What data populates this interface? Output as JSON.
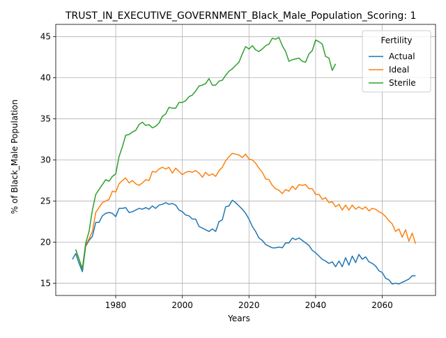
{
  "chart_data": {
    "type": "line",
    "title": "TRUST_IN_EXECUTIVE_GOVERNMENT_Black_Male_Population_Scoring: 1",
    "xlabel": "Years",
    "ylabel": "% of Black_Male Population",
    "xlim": [
      1962,
      2076
    ],
    "ylim": [
      13.5,
      46.5
    ],
    "x_ticks": [
      1980,
      2000,
      2020,
      2040,
      2060
    ],
    "y_ticks": [
      15,
      20,
      25,
      30,
      35,
      40,
      45
    ],
    "grid": true,
    "legend": {
      "title": "Fertility",
      "placement": "top-right"
    },
    "series": [
      {
        "name": "Actual",
        "color": "#1f77b4",
        "points": [
          [
            1967,
            17.9
          ],
          [
            1968,
            18.6
          ],
          [
            1969,
            17.4
          ],
          [
            1970,
            16.4
          ],
          [
            1971,
            19.5
          ],
          [
            1972,
            20.2
          ],
          [
            1973,
            20.7
          ],
          [
            1974,
            22.4
          ],
          [
            1975,
            22.4
          ],
          [
            1976,
            23.2
          ],
          [
            1977,
            23.5
          ],
          [
            1978,
            23.6
          ],
          [
            1979,
            23.5
          ],
          [
            1980,
            23.1
          ],
          [
            1981,
            24.1
          ],
          [
            1982,
            24.1
          ],
          [
            1983,
            24.2
          ],
          [
            1984,
            23.6
          ],
          [
            1985,
            23.7
          ],
          [
            1986,
            23.9
          ],
          [
            1987,
            24.1
          ],
          [
            1988,
            24.0
          ],
          [
            1989,
            24.2
          ],
          [
            1990,
            24.0
          ],
          [
            1991,
            24.4
          ],
          [
            1992,
            24.1
          ],
          [
            1993,
            24.5
          ],
          [
            1994,
            24.6
          ],
          [
            1995,
            24.8
          ],
          [
            1996,
            24.6
          ],
          [
            1997,
            24.7
          ],
          [
            1998,
            24.5
          ],
          [
            1999,
            23.9
          ],
          [
            2000,
            23.7
          ],
          [
            2001,
            23.3
          ],
          [
            2002,
            23.2
          ],
          [
            2003,
            22.8
          ],
          [
            2004,
            22.8
          ],
          [
            2005,
            21.9
          ],
          [
            2006,
            21.7
          ],
          [
            2007,
            21.5
          ],
          [
            2008,
            21.3
          ],
          [
            2009,
            21.6
          ],
          [
            2010,
            21.3
          ],
          [
            2011,
            22.5
          ],
          [
            2012,
            22.7
          ],
          [
            2013,
            24.3
          ],
          [
            2014,
            24.4
          ],
          [
            2015,
            25.1
          ],
          [
            2016,
            24.8
          ],
          [
            2017,
            24.4
          ],
          [
            2018,
            24.0
          ],
          [
            2019,
            23.5
          ],
          [
            2020,
            22.8
          ],
          [
            2021,
            21.9
          ],
          [
            2022,
            21.3
          ],
          [
            2023,
            20.5
          ],
          [
            2024,
            20.2
          ],
          [
            2025,
            19.7
          ],
          [
            2026,
            19.5
          ],
          [
            2027,
            19.3
          ],
          [
            2028,
            19.3
          ],
          [
            2029,
            19.4
          ],
          [
            2030,
            19.3
          ],
          [
            2031,
            19.9
          ],
          [
            2032,
            19.9
          ],
          [
            2033,
            20.5
          ],
          [
            2034,
            20.3
          ],
          [
            2035,
            20.5
          ],
          [
            2036,
            20.2
          ],
          [
            2037,
            19.9
          ],
          [
            2038,
            19.6
          ],
          [
            2039,
            19.0
          ],
          [
            2040,
            18.7
          ],
          [
            2041,
            18.3
          ],
          [
            2042,
            17.9
          ],
          [
            2043,
            17.7
          ],
          [
            2044,
            17.4
          ],
          [
            2045,
            17.6
          ],
          [
            2046,
            17.0
          ],
          [
            2047,
            17.7
          ],
          [
            2048,
            17.0
          ],
          [
            2049,
            18.1
          ],
          [
            2050,
            17.2
          ],
          [
            2051,
            18.3
          ],
          [
            2052,
            17.5
          ],
          [
            2053,
            18.5
          ],
          [
            2054,
            17.9
          ],
          [
            2055,
            18.2
          ],
          [
            2056,
            17.6
          ],
          [
            2057,
            17.4
          ],
          [
            2058,
            17.1
          ],
          [
            2059,
            16.5
          ],
          [
            2060,
            16.3
          ],
          [
            2061,
            15.6
          ],
          [
            2062,
            15.4
          ],
          [
            2063,
            14.9
          ],
          [
            2064,
            15.0
          ],
          [
            2065,
            14.9
          ],
          [
            2066,
            15.1
          ],
          [
            2067,
            15.3
          ],
          [
            2068,
            15.5
          ],
          [
            2069,
            15.9
          ],
          [
            2070,
            15.9
          ]
        ]
      },
      {
        "name": "Ideal",
        "color": "#ff7f0e",
        "points": [
          [
            1968,
            19.1
          ],
          [
            1969,
            17.9
          ],
          [
            1970,
            16.8
          ],
          [
            1971,
            19.7
          ],
          [
            1972,
            20.4
          ],
          [
            1973,
            21.3
          ],
          [
            1974,
            23.6
          ],
          [
            1975,
            24.2
          ],
          [
            1976,
            24.8
          ],
          [
            1977,
            25.0
          ],
          [
            1978,
            25.2
          ],
          [
            1979,
            26.2
          ],
          [
            1980,
            26.1
          ],
          [
            1981,
            27.1
          ],
          [
            1982,
            27.5
          ],
          [
            1983,
            27.8
          ],
          [
            1984,
            27.2
          ],
          [
            1985,
            27.5
          ],
          [
            1986,
            27.1
          ],
          [
            1987,
            26.9
          ],
          [
            1988,
            27.2
          ],
          [
            1989,
            27.6
          ],
          [
            1990,
            27.5
          ],
          [
            1991,
            28.6
          ],
          [
            1992,
            28.5
          ],
          [
            1993,
            28.9
          ],
          [
            1994,
            29.1
          ],
          [
            1995,
            28.9
          ],
          [
            1996,
            29.1
          ],
          [
            1997,
            28.4
          ],
          [
            1998,
            29.0
          ],
          [
            1999,
            28.6
          ],
          [
            2000,
            28.2
          ],
          [
            2001,
            28.5
          ],
          [
            2002,
            28.6
          ],
          [
            2003,
            28.5
          ],
          [
            2004,
            28.7
          ],
          [
            2005,
            28.4
          ],
          [
            2006,
            27.9
          ],
          [
            2007,
            28.5
          ],
          [
            2008,
            28.1
          ],
          [
            2009,
            28.3
          ],
          [
            2010,
            28.0
          ],
          [
            2011,
            28.7
          ],
          [
            2012,
            29.1
          ],
          [
            2013,
            29.9
          ],
          [
            2014,
            30.4
          ],
          [
            2015,
            30.8
          ],
          [
            2016,
            30.7
          ],
          [
            2017,
            30.6
          ],
          [
            2018,
            30.3
          ],
          [
            2019,
            30.7
          ],
          [
            2020,
            30.1
          ],
          [
            2021,
            30.0
          ],
          [
            2022,
            29.6
          ],
          [
            2023,
            29.0
          ],
          [
            2024,
            28.5
          ],
          [
            2025,
            27.7
          ],
          [
            2026,
            27.6
          ],
          [
            2027,
            26.9
          ],
          [
            2028,
            26.5
          ],
          [
            2029,
            26.3
          ],
          [
            2030,
            25.9
          ],
          [
            2031,
            26.4
          ],
          [
            2032,
            26.2
          ],
          [
            2033,
            26.8
          ],
          [
            2034,
            26.4
          ],
          [
            2035,
            27.0
          ],
          [
            2036,
            26.9
          ],
          [
            2037,
            27.0
          ],
          [
            2038,
            26.5
          ],
          [
            2039,
            26.5
          ],
          [
            2040,
            25.8
          ],
          [
            2041,
            25.8
          ],
          [
            2042,
            25.2
          ],
          [
            2043,
            25.4
          ],
          [
            2044,
            24.8
          ],
          [
            2045,
            24.9
          ],
          [
            2046,
            24.3
          ],
          [
            2047,
            24.6
          ],
          [
            2048,
            23.9
          ],
          [
            2049,
            24.5
          ],
          [
            2050,
            23.9
          ],
          [
            2051,
            24.5
          ],
          [
            2052,
            24.0
          ],
          [
            2053,
            24.3
          ],
          [
            2054,
            24.0
          ],
          [
            2055,
            24.3
          ],
          [
            2056,
            23.8
          ],
          [
            2057,
            24.1
          ],
          [
            2058,
            24.0
          ],
          [
            2059,
            23.7
          ],
          [
            2060,
            23.5
          ],
          [
            2061,
            23.1
          ],
          [
            2062,
            22.6
          ],
          [
            2063,
            22.2
          ],
          [
            2064,
            21.3
          ],
          [
            2065,
            21.6
          ],
          [
            2066,
            20.6
          ],
          [
            2067,
            21.5
          ],
          [
            2068,
            20.1
          ],
          [
            2069,
            21.1
          ],
          [
            2070,
            19.8
          ]
        ]
      },
      {
        "name": "Sterile",
        "color": "#2ca02c",
        "points": [
          [
            1968,
            19.1
          ],
          [
            1969,
            17.9
          ],
          [
            1970,
            16.7
          ],
          [
            1971,
            19.9
          ],
          [
            1972,
            21.3
          ],
          [
            1973,
            23.9
          ],
          [
            1974,
            25.8
          ],
          [
            1975,
            26.4
          ],
          [
            1976,
            27.0
          ],
          [
            1977,
            27.6
          ],
          [
            1978,
            27.4
          ],
          [
            1979,
            28.0
          ],
          [
            1980,
            28.3
          ],
          [
            1981,
            30.4
          ],
          [
            1982,
            31.6
          ],
          [
            1983,
            33.0
          ],
          [
            1984,
            33.1
          ],
          [
            1985,
            33.4
          ],
          [
            1986,
            33.6
          ],
          [
            1987,
            34.3
          ],
          [
            1988,
            34.6
          ],
          [
            1989,
            34.2
          ],
          [
            1990,
            34.3
          ],
          [
            1991,
            33.9
          ],
          [
            1992,
            34.1
          ],
          [
            1993,
            34.5
          ],
          [
            1994,
            35.3
          ],
          [
            1995,
            35.6
          ],
          [
            1996,
            36.4
          ],
          [
            1997,
            36.3
          ],
          [
            1998,
            36.3
          ],
          [
            1999,
            37.0
          ],
          [
            2000,
            37.0
          ],
          [
            2001,
            37.2
          ],
          [
            2002,
            37.7
          ],
          [
            2003,
            37.9
          ],
          [
            2004,
            38.4
          ],
          [
            2005,
            39.0
          ],
          [
            2006,
            39.1
          ],
          [
            2007,
            39.3
          ],
          [
            2008,
            39.9
          ],
          [
            2009,
            39.1
          ],
          [
            2010,
            39.1
          ],
          [
            2011,
            39.6
          ],
          [
            2012,
            39.7
          ],
          [
            2013,
            40.3
          ],
          [
            2014,
            40.8
          ],
          [
            2015,
            41.1
          ],
          [
            2016,
            41.5
          ],
          [
            2017,
            41.9
          ],
          [
            2018,
            42.9
          ],
          [
            2019,
            43.8
          ],
          [
            2020,
            43.5
          ],
          [
            2021,
            43.9
          ],
          [
            2022,
            43.4
          ],
          [
            2023,
            43.2
          ],
          [
            2024,
            43.5
          ],
          [
            2025,
            43.9
          ],
          [
            2026,
            44.1
          ],
          [
            2027,
            44.8
          ],
          [
            2028,
            44.7
          ],
          [
            2029,
            44.9
          ],
          [
            2030,
            43.9
          ],
          [
            2031,
            43.2
          ],
          [
            2032,
            42.0
          ],
          [
            2033,
            42.2
          ],
          [
            2034,
            42.3
          ],
          [
            2035,
            42.4
          ],
          [
            2036,
            42.0
          ],
          [
            2037,
            41.9
          ],
          [
            2038,
            42.9
          ],
          [
            2039,
            43.3
          ],
          [
            2040,
            44.6
          ],
          [
            2041,
            44.4
          ],
          [
            2042,
            44.1
          ],
          [
            2043,
            42.6
          ],
          [
            2044,
            42.4
          ],
          [
            2045,
            40.9
          ],
          [
            2046,
            41.7
          ]
        ]
      }
    ]
  }
}
